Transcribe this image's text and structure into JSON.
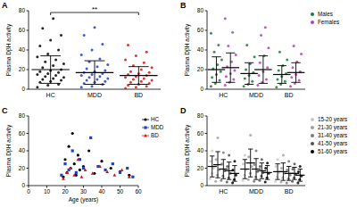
{
  "chart_data": [
    {
      "type": "dot",
      "title": "A",
      "ylabel": "Plasma DβH activity",
      "categories": [
        "HC",
        "MDD",
        "BD"
      ],
      "colors": [
        "#000000",
        "#2040c8",
        "#e01010"
      ],
      "values": [
        [
          2,
          4,
          5,
          7,
          8,
          9,
          10,
          11,
          12,
          13,
          14,
          15,
          16,
          17,
          18,
          19,
          20,
          22,
          24,
          26,
          28,
          30,
          33,
          36,
          40,
          44,
          50,
          55,
          62,
          72
        ],
        [
          2,
          3,
          5,
          6,
          7,
          8,
          9,
          10,
          11,
          12,
          13,
          14,
          15,
          16,
          17,
          18,
          19,
          21,
          23,
          25,
          28,
          31,
          35,
          40,
          46,
          55,
          63
        ],
        [
          1,
          2,
          3,
          4,
          5,
          6,
          7,
          8,
          9,
          10,
          11,
          12,
          13,
          14,
          15,
          16,
          17,
          18,
          20,
          22,
          24,
          27,
          30,
          34,
          38,
          45
        ]
      ],
      "mean": [
        20,
        17,
        14
      ],
      "sd": [
        14,
        12,
        9
      ],
      "annotation": "**",
      "ylim": [
        0,
        80
      ],
      "yticks": [
        0,
        20,
        40,
        60,
        80
      ]
    },
    {
      "type": "dot",
      "title": "B",
      "ylabel": "Plasma DβH activity",
      "categories": [
        "HC",
        "MDD",
        "BD"
      ],
      "legend": "right",
      "series": [
        {
          "name": "Males",
          "color": "#1a7a3a",
          "values": [
            [
              3,
              6,
              9,
              12,
              15,
              18,
              21,
              25,
              30,
              38,
              45,
              57
            ],
            [
              3,
              5,
              8,
              11,
              14,
              17,
              20,
              26,
              33,
              45
            ],
            [
              2,
              5,
              8,
              10,
              13,
              16,
              19,
              24,
              30,
              38
            ]
          ],
          "mean": [
            20,
            16,
            15
          ],
          "sd": [
            13,
            11,
            9
          ]
        },
        {
          "name": "Females",
          "color": "#b040c0",
          "values": [
            [
              4,
              7,
              10,
              13,
              16,
              19,
              23,
              28,
              35,
              44,
              58,
              72
            ],
            [
              4,
              7,
              10,
              14,
              18,
              22,
              27,
              34,
              42,
              55,
              63
            ],
            [
              3,
              6,
              9,
              12,
              15,
              18,
              22,
              28,
              36,
              44
            ]
          ],
          "mean": [
            22,
            20,
            17
          ],
          "sd": [
            15,
            14,
            10
          ]
        }
      ],
      "ylim": [
        0,
        80
      ],
      "yticks": [
        0,
        20,
        40,
        60,
        80
      ]
    },
    {
      "type": "scatter",
      "title": "C",
      "xlabel": "Age (years)",
      "ylabel": "Plasma DβH activity",
      "legend": "right",
      "series": [
        {
          "name": "HC",
          "color": "#000000",
          "marker": "circle",
          "x": [
            19,
            20,
            21,
            22,
            23,
            24,
            25,
            26,
            27,
            28,
            30,
            33,
            36,
            40,
            45,
            50,
            55
          ],
          "values": [
            10,
            30,
            15,
            45,
            20,
            60,
            25,
            12,
            35,
            18,
            22,
            40,
            14,
            28,
            20,
            16,
            12
          ]
        },
        {
          "name": "MDD",
          "color": "#2040c8",
          "marker": "square",
          "x": [
            18,
            20,
            22,
            24,
            26,
            28,
            30,
            34,
            38,
            42,
            46,
            50,
            54,
            57
          ],
          "values": [
            12,
            25,
            18,
            40,
            15,
            30,
            20,
            55,
            22,
            18,
            25,
            15,
            20,
            10
          ]
        },
        {
          "name": "BD",
          "color": "#e01010",
          "marker": "triangle",
          "x": [
            19,
            21,
            23,
            25,
            27,
            29,
            31,
            35,
            39,
            43,
            47,
            51,
            55
          ],
          "values": [
            8,
            15,
            20,
            12,
            30,
            10,
            18,
            14,
            22,
            16,
            12,
            18,
            10
          ]
        }
      ],
      "xlim": [
        0,
        60
      ],
      "xticks": [
        0,
        10,
        20,
        30,
        40,
        50,
        60
      ],
      "ylim": [
        0,
        80
      ],
      "yticks": [
        0,
        20,
        40,
        60,
        80
      ]
    },
    {
      "type": "dot",
      "title": "D",
      "ylabel": "Plasma DβH activity",
      "categories": [
        "HC",
        "MDD",
        "BD"
      ],
      "legend": "right",
      "series": [
        {
          "name": "15-20 years",
          "color": "#c8c8c8",
          "values": [
            [
              8,
              14,
              20,
              28,
              40
            ],
            [
              6,
              12,
              18,
              25,
              35
            ],
            [
              5,
              10,
              15,
              22,
              30
            ]
          ],
          "mean": [
            22,
            19,
            16
          ],
          "sd": [
            12,
            11,
            9
          ]
        },
        {
          "name": "21-30 years",
          "color": "#a0a0a0",
          "values": [
            [
              5,
              12,
              18,
              30,
              55
            ],
            [
              7,
              14,
              22,
              33,
              58
            ],
            [
              4,
              9,
              14,
              20,
              35
            ]
          ],
          "mean": [
            24,
            26,
            16
          ],
          "sd": [
            15,
            16,
            10
          ]
        },
        {
          "name": "31-40 years",
          "color": "#787878",
          "values": [
            [
              6,
              11,
              17,
              25,
              38
            ],
            [
              5,
              10,
              16,
              24,
              40
            ],
            [
              3,
              8,
              12,
              18,
              28
            ]
          ],
          "mean": [
            19,
            19,
            14
          ],
          "sd": [
            11,
            12,
            8
          ]
        },
        {
          "name": "41-50 years",
          "color": "#505050",
          "values": [
            [
              4,
              9,
              14,
              22,
              35
            ],
            [
              6,
              11,
              15,
              22,
              30
            ],
            [
              5,
              9,
              13,
              19,
              25
            ]
          ],
          "mean": [
            17,
            17,
            14
          ],
          "sd": [
            10,
            9,
            7
          ]
        },
        {
          "name": "51-60 years",
          "color": "#000000",
          "values": [
            [
              3,
              7,
              12,
              18,
              28
            ],
            [
              4,
              9,
              14,
              20,
              26
            ],
            [
              3,
              7,
              11,
              16,
              22
            ]
          ],
          "mean": [
            14,
            15,
            12
          ],
          "sd": [
            9,
            8,
            7
          ]
        }
      ],
      "ylim": [
        0,
        80
      ],
      "yticks": [
        0,
        20,
        40,
        60,
        80
      ]
    }
  ]
}
